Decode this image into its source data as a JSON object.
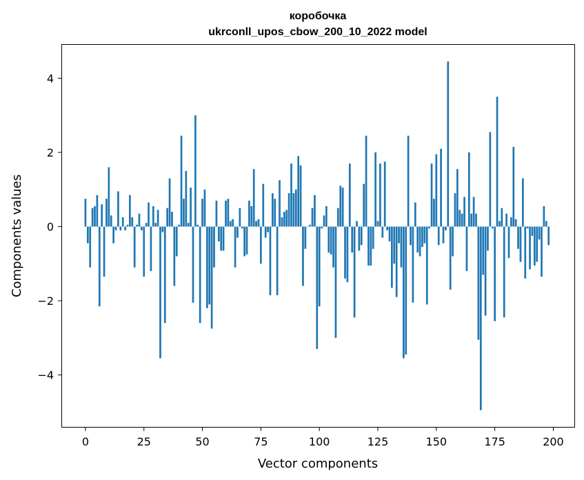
{
  "chart_data": {
    "type": "bar",
    "title": "коробочка",
    "subtitle": "ukrconll_upos_cbow_200_10_2022 model",
    "xlabel": "Vector components",
    "ylabel": "Components values",
    "xlim": [
      -10,
      209
    ],
    "ylim": [
      -5.4,
      4.9
    ],
    "xticks": [
      0,
      25,
      50,
      75,
      100,
      125,
      150,
      175,
      200
    ],
    "yticks": [
      -4,
      -2,
      0,
      2,
      4
    ],
    "xtick_labels": [
      "0",
      "25",
      "50",
      "75",
      "100",
      "125",
      "150",
      "175",
      "200"
    ],
    "ytick_labels": [
      "−4",
      "−2",
      "0",
      "2",
      "4"
    ],
    "bar_color": "#1f77b4",
    "values": [
      0.75,
      -0.45,
      -1.1,
      0.5,
      0.55,
      0.85,
      -2.15,
      0.6,
      -1.35,
      0.75,
      1.6,
      0.3,
      -0.45,
      -0.1,
      0.95,
      -0.1,
      0.25,
      -0.1,
      0.05,
      0.85,
      0.25,
      -1.1,
      0.05,
      0.35,
      -0.1,
      -1.35,
      0.1,
      0.65,
      -1.2,
      0.55,
      0.1,
      0.45,
      -3.55,
      -0.15,
      -2.6,
      0.5,
      1.3,
      0.4,
      -1.6,
      -0.8,
      0.05,
      2.45,
      0.75,
      1.5,
      0.1,
      1.05,
      -2.05,
      3.0,
      0.05,
      -2.6,
      0.75,
      1.0,
      -2.2,
      -2.1,
      -2.75,
      -1.1,
      0.7,
      -0.4,
      -0.65,
      -0.65,
      0.7,
      0.75,
      0.15,
      0.2,
      -1.1,
      -0.3,
      0.5,
      -0.05,
      -0.8,
      -0.75,
      0.7,
      0.55,
      1.55,
      0.15,
      0.2,
      -1.0,
      1.15,
      -0.3,
      -0.15,
      -1.85,
      0.9,
      0.75,
      -1.85,
      1.25,
      0.25,
      0.4,
      0.45,
      0.9,
      1.7,
      0.9,
      1.0,
      1.9,
      1.65,
      -1.6,
      -0.6,
      0.0,
      0.05,
      0.5,
      0.85,
      -3.3,
      -2.15,
      -0.05,
      0.3,
      0.55,
      -0.7,
      -0.75,
      -1.1,
      -3.0,
      0.5,
      1.1,
      1.05,
      -1.4,
      -1.5,
      1.7,
      -0.7,
      -2.45,
      0.15,
      -0.65,
      -0.5,
      1.15,
      2.45,
      -1.05,
      -1.05,
      -0.6,
      2.0,
      0.15,
      1.7,
      -0.3,
      1.75,
      -0.1,
      -0.4,
      -1.65,
      -1.0,
      -1.9,
      -0.45,
      -1.1,
      -3.55,
      -3.45,
      2.45,
      -0.5,
      -2.05,
      0.65,
      -0.7,
      -0.8,
      -0.55,
      -0.45,
      -2.1,
      -0.05,
      1.7,
      0.75,
      1.95,
      -0.5,
      2.1,
      -0.45,
      -0.1,
      4.45,
      -1.7,
      -0.8,
      0.9,
      1.55,
      0.45,
      0.35,
      0.8,
      -1.2,
      2.0,
      0.35,
      0.8,
      0.35,
      -3.05,
      -4.95,
      -1.3,
      -2.4,
      -0.65,
      2.55,
      -0.05,
      -2.55,
      3.5,
      0.15,
      0.5,
      -2.45,
      0.35,
      -0.85,
      0.25,
      2.15,
      0.2,
      -0.6,
      -0.95,
      1.3,
      -1.4,
      -0.05,
      -1.15,
      -0.25,
      -1.05,
      -0.95,
      -0.35,
      -1.35,
      0.55,
      0.15,
      -0.5
    ]
  }
}
